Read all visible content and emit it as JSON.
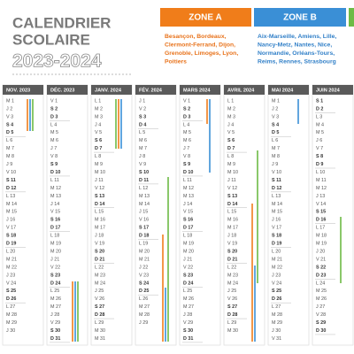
{
  "header": {
    "title_line1": "CALENDRIER",
    "title_line2": "SCOLAIRE",
    "year": "2023-2024"
  },
  "zones": [
    {
      "name": "ZONE A",
      "academies": [
        "Besançon, Bordeaux,",
        "Clermont-Ferrand, Dijon,",
        "Grenoble, Limoges, Lyon,",
        "Poitiers"
      ]
    },
    {
      "name": "ZONE B",
      "academies": [
        "Aix-Marseille, Amiens, Lille,",
        "Nancy-Metz, Nantes, Nice,",
        "Normandie, Orléans-Tours,",
        "Reims, Rennes, Strasbourg"
      ]
    }
  ],
  "months": [
    {
      "name": "NOV. 2023",
      "days": [
        "M 1",
        "J 2",
        "V 3",
        "S 4",
        "D 5",
        "L 6",
        "M 7",
        "M 8",
        "J 9",
        "V 10",
        "S 11",
        "D 12",
        "L 13",
        "M 14",
        "M 15",
        "J 16",
        "V 17",
        "S 18",
        "D 19",
        "L 20",
        "M 21",
        "M 22",
        "J 23",
        "V 24",
        "S 25",
        "D 26",
        "L 27",
        "M 28",
        "M 29",
        "J 30"
      ]
    },
    {
      "name": "DÉC. 2023",
      "days": [
        "V 1",
        "S 2",
        "D 3",
        "L 4",
        "M 5",
        "M 6",
        "J 7",
        "V 8",
        "S 9",
        "D 10",
        "L 11",
        "M 12",
        "M 13",
        "J 14",
        "V 15",
        "S 16",
        "D 17",
        "L 18",
        "M 19",
        "M 20",
        "J 21",
        "V 22",
        "S 23",
        "D 24",
        "L 25",
        "M 26",
        "M 27",
        "J 28",
        "V 29",
        "S 30",
        "D 31"
      ]
    },
    {
      "name": "JANV. 2024",
      "days": [
        "L 1",
        "M 2",
        "M 3",
        "J 4",
        "V 5",
        "S 6",
        "D 7",
        "L 8",
        "M 9",
        "M 10",
        "J 11",
        "V 12",
        "S 13",
        "D 14",
        "L 15",
        "M 16",
        "M 17",
        "J 18",
        "V 19",
        "S 20",
        "D 21",
        "L 22",
        "M 23",
        "M 24",
        "J 25",
        "V 26",
        "S 27",
        "D 28",
        "L 29",
        "M 30",
        "M 31"
      ]
    },
    {
      "name": "FÉV. 2024",
      "days": [
        "J 1",
        "V 2",
        "S 3",
        "D 4",
        "L 5",
        "M 6",
        "M 7",
        "J 8",
        "V 9",
        "S 10",
        "D 11",
        "L 12",
        "M 13",
        "M 14",
        "J 15",
        "V 16",
        "S 17",
        "D 18",
        "L 19",
        "M 20",
        "M 21",
        "J 22",
        "V 23",
        "S 24",
        "D 25",
        "L 26",
        "M 27",
        "M 28",
        "J 29"
      ]
    },
    {
      "name": "MARS 2024",
      "days": [
        "V 1",
        "S 2",
        "D 3",
        "L 4",
        "M 5",
        "M 6",
        "J 7",
        "V 8",
        "S 9",
        "D 10",
        "L 11",
        "M 12",
        "M 13",
        "J 14",
        "V 15",
        "S 16",
        "D 17",
        "L 18",
        "M 19",
        "M 20",
        "J 21",
        "V 22",
        "S 23",
        "D 24",
        "L 25",
        "M 26",
        "M 27",
        "J 28",
        "V 29",
        "S 30",
        "D 31"
      ]
    },
    {
      "name": "AVRIL 2024",
      "days": [
        "L 1",
        "M 2",
        "M 3",
        "J 4",
        "V 5",
        "S 6",
        "D 7",
        "L 8",
        "M 9",
        "M 10",
        "J 11",
        "V 12",
        "S 13",
        "D 14",
        "L 15",
        "M 16",
        "M 17",
        "J 18",
        "V 19",
        "S 20",
        "D 21",
        "L 22",
        "M 23",
        "M 24",
        "J 25",
        "V 26",
        "S 27",
        "D 28",
        "L 29",
        "M 30"
      ]
    },
    {
      "name": "MAI 2024",
      "days": [
        "M 1",
        "J 2",
        "V 3",
        "S 4",
        "D 5",
        "L 6",
        "M 7",
        "M 8",
        "J 9",
        "V 10",
        "S 11",
        "D 12",
        "L 13",
        "M 14",
        "M 15",
        "J 16",
        "V 17",
        "S 18",
        "D 19",
        "L 20",
        "M 21",
        "M 22",
        "J 23",
        "V 24",
        "S 25",
        "D 26",
        "L 27",
        "M 28",
        "M 29",
        "J 30",
        "V 31"
      ]
    },
    {
      "name": "JUIN 2024",
      "days": [
        "S 1",
        "D 2",
        "L 3",
        "M 4",
        "M 5",
        "J 6",
        "V 7",
        "S 8",
        "D 9",
        "L 10",
        "M 11",
        "M 12",
        "J 13",
        "V 14",
        "S 15",
        "D 16",
        "L 17",
        "M 18",
        "M 19",
        "J 20",
        "V 21",
        "S 22",
        "D 23",
        "L 24",
        "M 25",
        "M 26",
        "J 27",
        "V 28",
        "S 29",
        "D 30"
      ]
    }
  ]
}
